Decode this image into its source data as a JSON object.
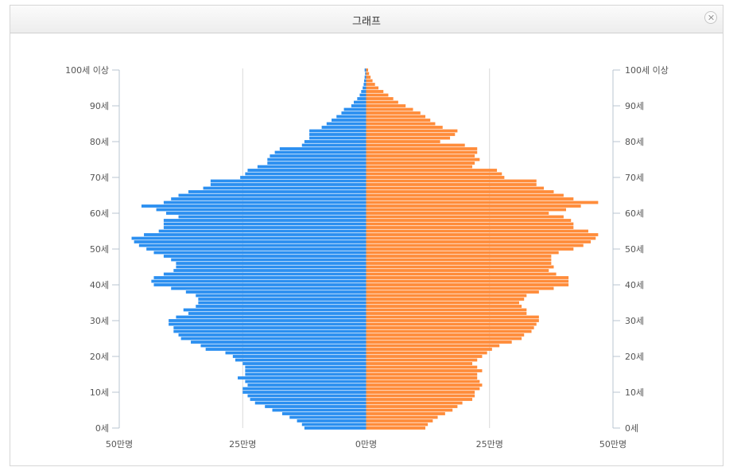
{
  "window": {
    "title": "그래프"
  },
  "chart_data": {
    "type": "bar",
    "orientation": "horizontal-mirrored",
    "unit_label": "만명",
    "xlim": [
      -50,
      50
    ],
    "x_ticks": [
      {
        "value": -50,
        "label": "50만명"
      },
      {
        "value": -25,
        "label": "25만명"
      },
      {
        "value": 0,
        "label": "0만명"
      },
      {
        "value": 25,
        "label": "25만명"
      },
      {
        "value": 50,
        "label": "50만명"
      }
    ],
    "y_ticks": [
      {
        "age": 0,
        "label": "0세"
      },
      {
        "age": 10,
        "label": "10세"
      },
      {
        "age": 20,
        "label": "20세"
      },
      {
        "age": 30,
        "label": "30세"
      },
      {
        "age": 40,
        "label": "40세"
      },
      {
        "age": 50,
        "label": "50세"
      },
      {
        "age": 60,
        "label": "60세"
      },
      {
        "age": 70,
        "label": "70세"
      },
      {
        "age": 80,
        "label": "80세"
      },
      {
        "age": 90,
        "label": "90세"
      },
      {
        "age": 100,
        "label": "100세 이상"
      }
    ],
    "grid": true,
    "colors": {
      "left": "#2b8ff0",
      "right": "#ff8c3a"
    },
    "ages": [
      0,
      1,
      2,
      3,
      4,
      5,
      6,
      7,
      8,
      9,
      10,
      11,
      12,
      13,
      14,
      15,
      16,
      17,
      18,
      19,
      20,
      21,
      22,
      23,
      24,
      25,
      26,
      27,
      28,
      29,
      30,
      31,
      32,
      33,
      34,
      35,
      36,
      37,
      38,
      39,
      40,
      41,
      42,
      43,
      44,
      45,
      46,
      47,
      48,
      49,
      50,
      51,
      52,
      53,
      54,
      55,
      56,
      57,
      58,
      59,
      60,
      61,
      62,
      63,
      64,
      65,
      66,
      67,
      68,
      69,
      70,
      71,
      72,
      73,
      74,
      75,
      76,
      77,
      78,
      79,
      80,
      81,
      82,
      83,
      84,
      85,
      86,
      87,
      88,
      89,
      90,
      91,
      92,
      93,
      94,
      95,
      96,
      97,
      98,
      99,
      100
    ],
    "series": [
      {
        "side": "left",
        "values": [
          12.5,
          13,
          14,
          15.5,
          17,
          19,
          20.5,
          22.5,
          23.5,
          24,
          25,
          25,
          24,
          24.5,
          26,
          24.5,
          24.5,
          24.5,
          25,
          26.5,
          27,
          28.5,
          32.5,
          33.5,
          35.5,
          37.5,
          38,
          39,
          39,
          40,
          40,
          38.5,
          36,
          37,
          34.5,
          34,
          34,
          34.5,
          36.5,
          39.5,
          43,
          43.5,
          43,
          41,
          39,
          38.5,
          38.5,
          39.5,
          41,
          43,
          44.5,
          46,
          47,
          47.5,
          45,
          42,
          41,
          41,
          41,
          38,
          40.5,
          42.5,
          45.5,
          41,
          39.5,
          38,
          36,
          33,
          31.5,
          31.5,
          25.5,
          24.5,
          24,
          22,
          20,
          20,
          19.5,
          18.5,
          17.5,
          13,
          12.5,
          11.5,
          11.5,
          11.5,
          9,
          8,
          7,
          6,
          5,
          4.5,
          3,
          2.5,
          1.8,
          1.3,
          1,
          0.7,
          0.5,
          0.4,
          0.3,
          0.2,
          0.3
        ]
      },
      {
        "side": "right",
        "values": [
          12,
          12.5,
          13.5,
          14.5,
          16,
          17.5,
          18.5,
          19.5,
          21.5,
          22,
          22,
          23,
          23.5,
          23,
          22.5,
          22.5,
          23.5,
          22.5,
          21.5,
          22.5,
          23.5,
          24.5,
          25.5,
          27,
          29.5,
          31.5,
          32,
          33.5,
          34,
          34.5,
          35,
          35,
          32.5,
          32.5,
          31.5,
          31,
          32,
          32.5,
          35,
          38,
          41,
          41,
          41,
          38.5,
          37,
          38,
          37.5,
          37.5,
          37.5,
          39,
          42,
          44,
          45.5,
          46.5,
          47,
          45,
          42,
          42,
          41.5,
          40,
          37,
          40.5,
          43.5,
          47,
          42,
          40,
          38,
          36,
          34.5,
          34.5,
          28,
          27.5,
          26.5,
          21.5,
          22,
          23,
          22,
          22.5,
          22.5,
          20,
          15,
          17,
          18,
          18.5,
          15.5,
          14,
          13,
          12,
          11,
          9.5,
          8,
          6.5,
          5.5,
          4.5,
          3.5,
          2.5,
          1.8,
          1.3,
          0.9,
          0.6,
          0.4
        ]
      }
    ]
  }
}
